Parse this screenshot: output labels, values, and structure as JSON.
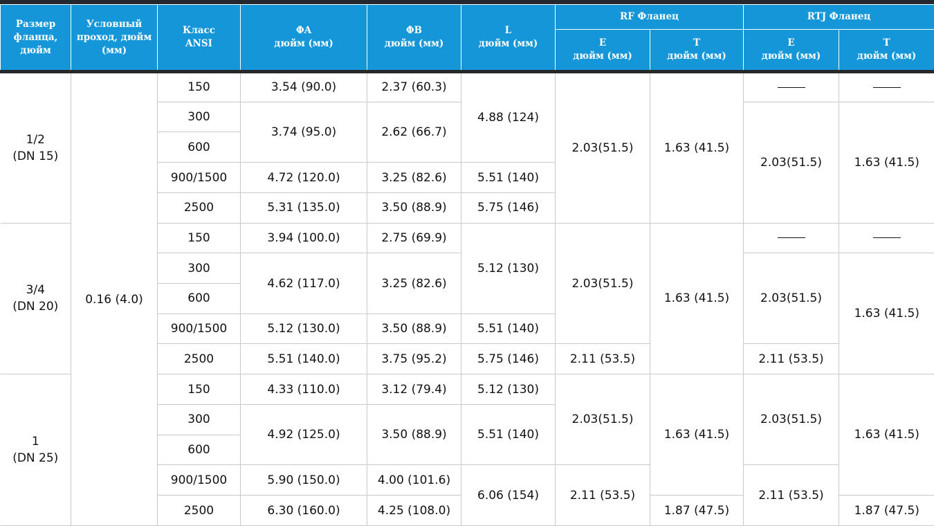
{
  "header": {
    "flange_size": "Размер фланца, дюйм",
    "nominal_bore": "Условный проход, дюйм (мм)",
    "ansi_class_line1": "Класс",
    "ansi_class_line2": "ANSI",
    "phi_a": "ΦA",
    "phi_a_unit": "дюйм (мм)",
    "phi_b": "ΦB",
    "phi_b_unit": "дюйм (мм)",
    "l": "L",
    "l_unit": "дюйм (мм)",
    "rf_flange": "RF Фланец",
    "rtj_flange": "RTJ Фланец",
    "e": "E",
    "t": "T",
    "unit": "дюйм (мм)"
  },
  "nominal_bore_value": "0.16 (4.0)",
  "dash": "——",
  "groups": [
    {
      "size": "1/2",
      "dn": "(DN 15)",
      "classes": [
        "150",
        "300",
        "600",
        "900/1500",
        "2500"
      ],
      "phi_a": [
        "3.54 (90.0)",
        "3.74 (95.0)",
        "4.72 (120.0)",
        "5.31 (135.0)"
      ],
      "phi_b": [
        "2.37 (60.3)",
        "2.62 (66.7)",
        "3.25 (82.6)",
        "3.50 (88.9)"
      ],
      "l": [
        "4.88 (124)",
        "5.51 (140)",
        "5.75 (146)"
      ],
      "rf_e": [
        "2.03(51.5)"
      ],
      "rf_t": [
        "1.63 (41.5)"
      ],
      "rtj_e": [
        "2.03(51.5)"
      ],
      "rtj_t": [
        "1.63 (41.5)"
      ]
    },
    {
      "size": "3/4",
      "dn": "(DN 20)",
      "classes": [
        "150",
        "300",
        "600",
        "900/1500",
        "2500"
      ],
      "phi_a": [
        "3.94 (100.0)",
        "4.62 (117.0)",
        "5.12 (130.0)",
        "5.51 (140.0)"
      ],
      "phi_b": [
        "2.75 (69.9)",
        "3.25 (82.6)",
        "3.50 (88.9)",
        "3.75 (95.2)"
      ],
      "l": [
        "5.12 (130)",
        "5.51 (140)",
        "5.75 (146)"
      ],
      "rf_e": [
        "2.03(51.5)",
        "2.11 (53.5)"
      ],
      "rf_t": [
        "1.63 (41.5)"
      ],
      "rtj_e": [
        "2.03(51.5)",
        "2.11 (53.5)"
      ],
      "rtj_t": [
        "1.63 (41.5)"
      ]
    },
    {
      "size": "1",
      "dn": "(DN 25)",
      "classes": [
        "150",
        "300",
        "600",
        "900/1500",
        "2500"
      ],
      "phi_a": [
        "4.33 (110.0)",
        "4.92 (125.0)",
        "5.90 (150.0)",
        "6.30 (160.0)"
      ],
      "phi_b": [
        "3.12 (79.4)",
        "3.50 (88.9)",
        "4.00 (101.6)",
        "4.25 (108.0)"
      ],
      "l": [
        "5.12 (130)",
        "5.51 (140)",
        "6.06 (154)"
      ],
      "rf_e": [
        "2.03(51.5)",
        "2.11 (53.5)"
      ],
      "rf_t": [
        "1.63 (41.5)",
        "1.87 (47.5)"
      ],
      "rtj_e": [
        "2.03(51.5)",
        "2.11 (53.5)"
      ],
      "rtj_t": [
        "1.63 (41.5)",
        "1.87 (47.5)"
      ]
    }
  ]
}
